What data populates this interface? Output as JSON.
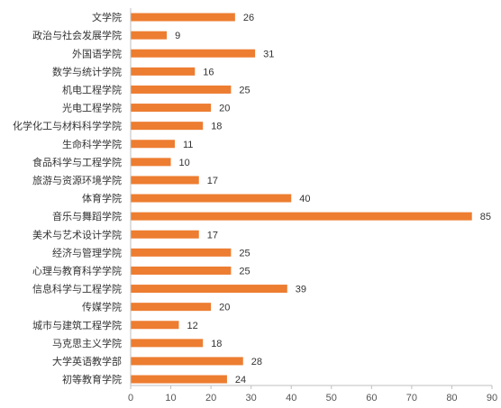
{
  "chart_data": {
    "type": "bar",
    "orientation": "horizontal",
    "title": "",
    "xlabel": "",
    "ylabel": "",
    "xlim": [
      0,
      90
    ],
    "ticks": [
      0,
      10,
      20,
      30,
      40,
      50,
      60,
      70,
      80,
      90
    ],
    "grid": false,
    "legend": "none",
    "bar_color": "#ED7D31",
    "categories": [
      "文学院",
      "政治与社会发展学院",
      "外国语学院",
      "数学与统计学院",
      "机电工程学院",
      "光电工程学院",
      "化学化工与材料科学学院",
      "生命科学学院",
      "食品科学与工程学院",
      "旅游与资源环境学院",
      "体育学院",
      "音乐与舞蹈学院",
      "美术与艺术设计学院",
      "经济与管理学院",
      "心理与教育科学学院",
      "信息科学与工程学院",
      "传媒学院",
      "城市与建筑工程学院",
      "马克思主义学院",
      "大学英语教学部",
      "初等教育学院"
    ],
    "values": [
      26,
      9,
      31,
      16,
      25,
      20,
      18,
      11,
      10,
      17,
      40,
      85,
      17,
      25,
      25,
      39,
      20,
      12,
      18,
      28,
      24
    ]
  }
}
